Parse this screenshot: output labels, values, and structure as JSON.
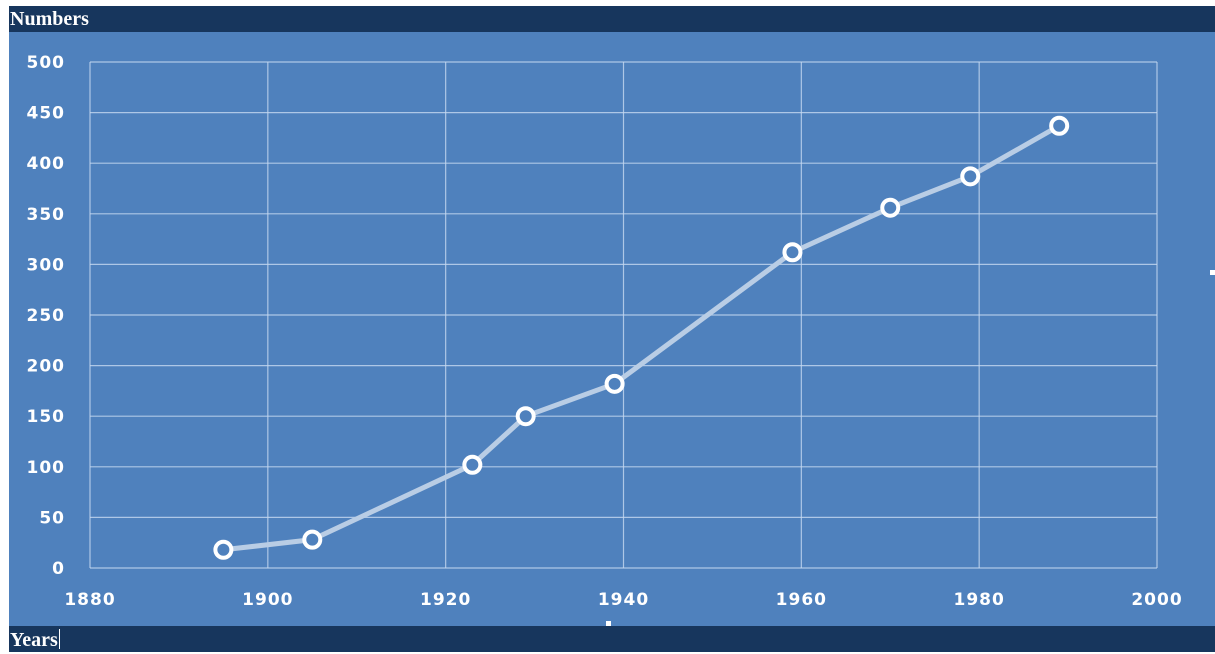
{
  "ylabel": "Numbers",
  "xlabel": "Years",
  "chart_data": {
    "type": "line",
    "title": "",
    "xlabel": "Years",
    "ylabel": "Numbers",
    "x": [
      1895,
      1905,
      1923,
      1929,
      1939,
      1959,
      1970,
      1979,
      1989
    ],
    "series": [
      {
        "values": [
          18,
          28,
          102,
          150,
          182,
          312,
          356,
          387,
          437
        ]
      }
    ],
    "xlim": [
      1880,
      2000
    ],
    "ylim": [
      0,
      500
    ],
    "xticks": [
      1880,
      1900,
      1920,
      1940,
      1960,
      1980,
      2000
    ],
    "yticks": [
      0,
      50,
      100,
      150,
      200,
      250,
      300,
      350,
      400,
      450,
      500
    ],
    "grid": true,
    "legend": "none",
    "colors": {
      "background": "#4f81bd",
      "line": "#b9cde5",
      "marker": "#ffffff",
      "grid": "#c6d9f1",
      "bars": "#17365d"
    }
  }
}
